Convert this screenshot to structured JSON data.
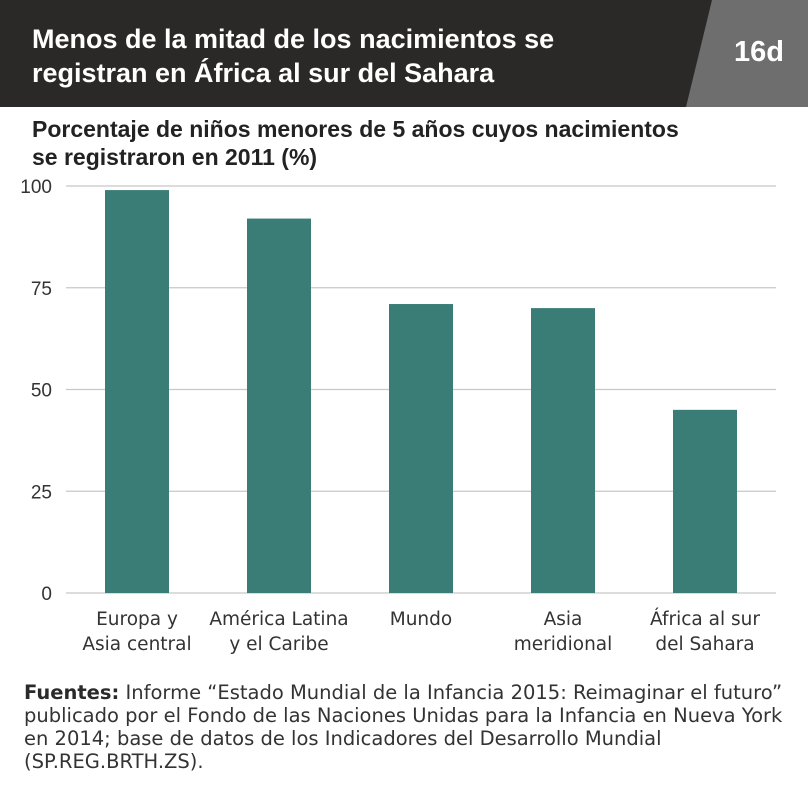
{
  "header": {
    "title_line1": "Menos de la mitad de los nacimientos se",
    "title_line2": "registran en África al sur del Sahara",
    "badge": "16d"
  },
  "subtitle_line1": "Porcentaje de niños menores de 5 años cuyos nacimientos",
  "subtitle_line2": "se registraron en 2011 (%)",
  "chart_data": {
    "type": "bar",
    "categories": [
      [
        "Europa y",
        "Asia central"
      ],
      [
        "América Latina",
        "y el Caribe"
      ],
      [
        "Mundo"
      ],
      [
        "Asia",
        "meridional"
      ],
      [
        "África al sur",
        "del Sahara"
      ]
    ],
    "values": [
      99,
      92,
      71,
      70,
      45
    ],
    "yticks": [
      "0",
      "25",
      "50",
      "75",
      "100"
    ],
    "ylim": [
      0,
      100
    ],
    "grid": true,
    "bar_color": "#3a7d76",
    "grid_color": "#c8c8c8"
  },
  "sources": {
    "label": "Fuentes:",
    "text": " Informe “Estado Mundial de la Infancia 2015: Reimaginar el futuro” publicado por el Fondo de las Naciones Unidas para la Infancia en Nueva York en 2014; base de datos de los Indicadores del Desarrollo Mundial (SP.REG.BRTH.ZS)."
  }
}
